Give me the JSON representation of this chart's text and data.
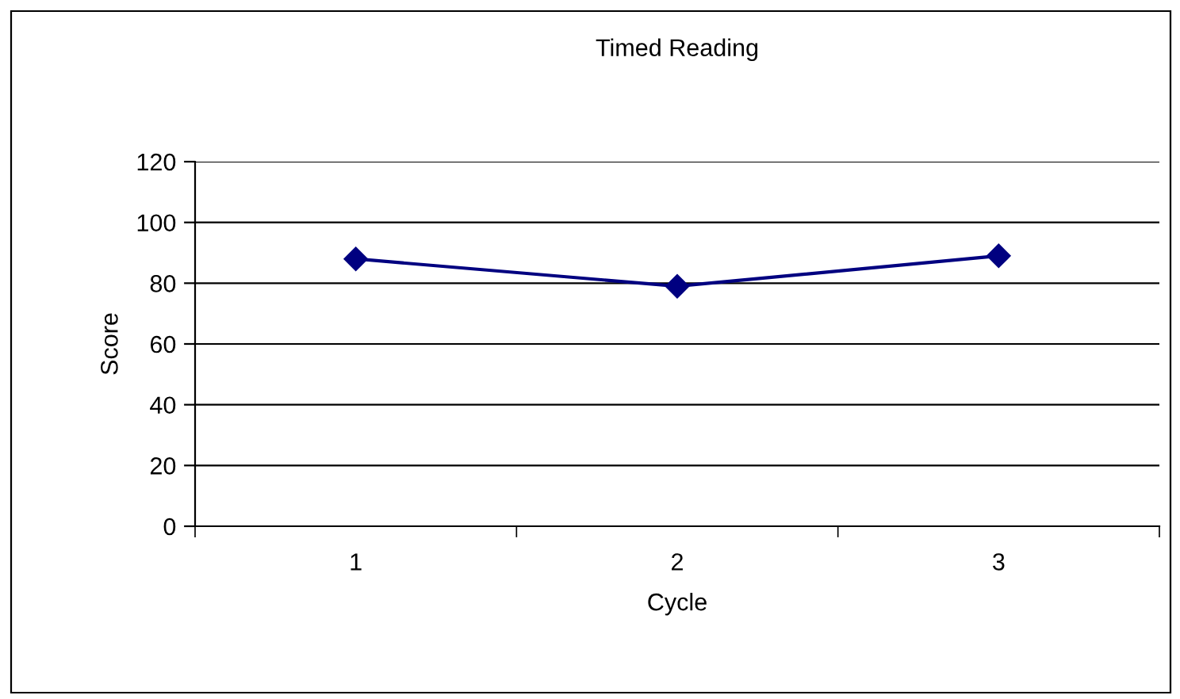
{
  "chart_data": {
    "type": "line",
    "title": "Timed Reading",
    "xlabel": "Cycle",
    "ylabel": "Score",
    "categories": [
      "1",
      "2",
      "3"
    ],
    "series": [
      {
        "color": "#000080",
        "values": [
          88,
          79,
          89
        ]
      }
    ],
    "ylim": [
      0,
      120
    ],
    "yticks": [
      0,
      20,
      40,
      60,
      80,
      100,
      120
    ],
    "grid": "y",
    "marker": "diamond",
    "line_style": "solid"
  }
}
